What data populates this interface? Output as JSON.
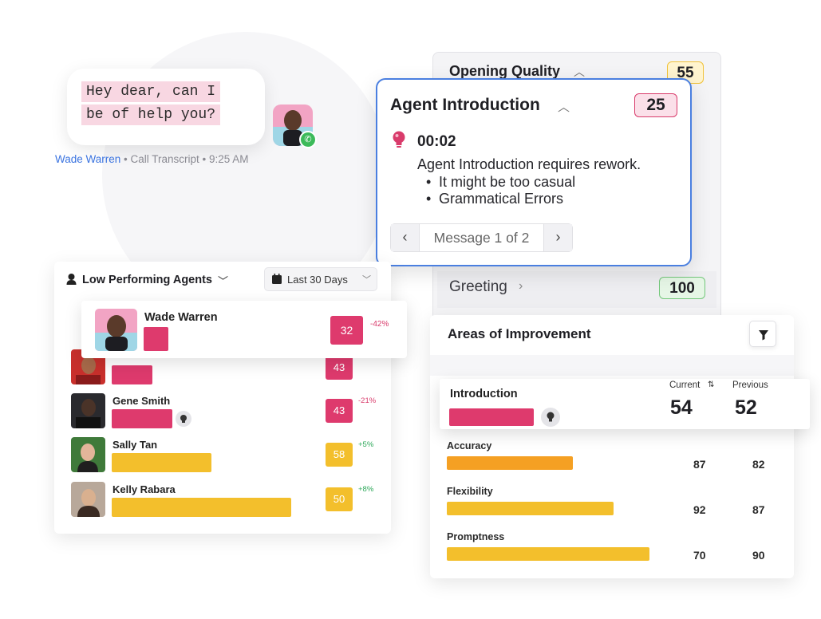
{
  "chat": {
    "lines": [
      "Hey dear, can I",
      "be of help you?"
    ],
    "sender": "Wade Warren",
    "meta": " • Call Transcript • 9:25 AM"
  },
  "opening_quality": {
    "title": "Opening Quality",
    "score": "55",
    "greeting_label": "Greeting",
    "greeting_score": "100"
  },
  "agent_intro": {
    "title": "Agent Introduction",
    "score": "25",
    "time": "00:02",
    "message": "Agent Introduction requires rework.",
    "bullets": [
      "It might be too casual",
      "Grammatical Errors"
    ],
    "pager_label": "Message 1 of 2",
    "prev_icon": "‹",
    "next_icon": "›"
  },
  "low_performing": {
    "title": "Low Performing Agents",
    "range_label": "Last 30 Days",
    "agents": [
      {
        "name": "Wade Warren",
        "value": "32",
        "delta": "-42%",
        "bar_fraction": 0.12,
        "color": "#de3a6d"
      },
      {
        "name": "",
        "value": "43",
        "delta": "",
        "bar_fraction": 0.18,
        "color": "#de3a6d"
      },
      {
        "name": "Gene Smith",
        "value": "43",
        "delta": "-21%",
        "bar_fraction": 0.28,
        "color": "#de3a6d"
      },
      {
        "name": "Sally Tan",
        "value": "58",
        "delta": "+5%",
        "bar_fraction": 0.46,
        "color": "#f3bf2c"
      },
      {
        "name": "Kelly Rabara",
        "value": "50",
        "delta": "+8%",
        "bar_fraction": 0.82,
        "color": "#f3bf2c"
      }
    ]
  },
  "areas_of_improvement": {
    "title": "Areas of Improvement",
    "col_current": "Current",
    "col_previous": "Previous",
    "sort_icon": "⇅",
    "highlight": {
      "label": "Introduction",
      "current": "54",
      "previous": "52"
    },
    "metrics": [
      {
        "label": "Accuracy",
        "current": "87",
        "previous": "82",
        "color": "#f5a023"
      },
      {
        "label": "Flexibility",
        "current": "92",
        "previous": "87",
        "color": "#f3bf2c"
      },
      {
        "label": "Promptness",
        "current": "70",
        "previous": "90",
        "color": "#f3bf2c"
      }
    ]
  }
}
